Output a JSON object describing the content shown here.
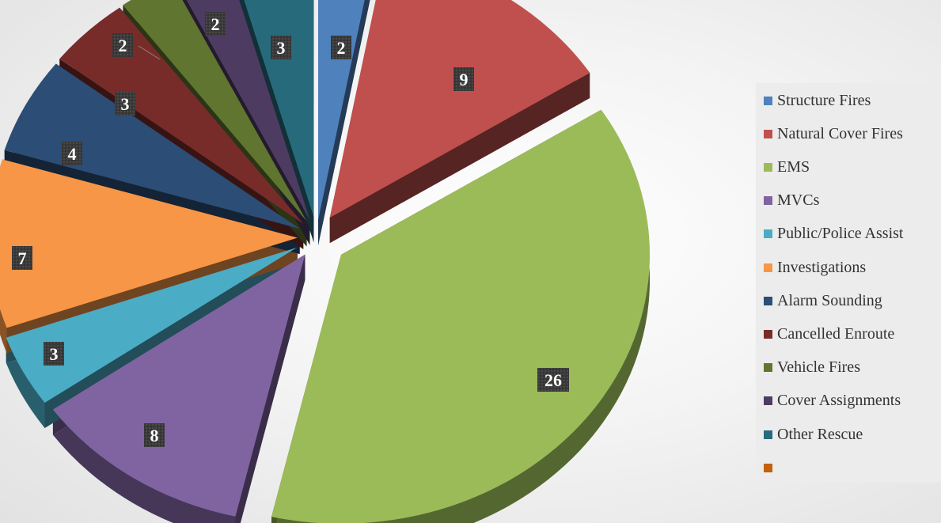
{
  "chart_data": {
    "type": "pie",
    "style": "3d-exploded",
    "legend_position": "right",
    "data_labels": true,
    "slices": [
      {
        "label": "Structure Fires",
        "value": 2,
        "color": "#4F81BD"
      },
      {
        "label": "Natural Cover Fires",
        "value": 9,
        "color": "#C0504D"
      },
      {
        "label": "EMS",
        "value": 26,
        "color": "#9BBB59"
      },
      {
        "label": "MVCs",
        "value": 8,
        "color": "#8064A2"
      },
      {
        "label": "Public/Police Assist",
        "value": 3,
        "color": "#4BACC6"
      },
      {
        "label": "Investigations",
        "value": 7,
        "color": "#F79646"
      },
      {
        "label": "Alarm Sounding",
        "value": 4,
        "color": "#2C4D75"
      },
      {
        "label": "Cancelled Enroute",
        "value": 3,
        "color": "#772C2A"
      },
      {
        "label": "Vehicle Fires",
        "value": 2,
        "color": "#5F7530"
      },
      {
        "label": "Cover Assignments",
        "value": 2,
        "color": "#4D3B62"
      },
      {
        "label": "Other Rescue",
        "value": 3,
        "color": "#276A7C"
      },
      {
        "label": "",
        "value": 0,
        "color": "#C0620E"
      }
    ]
  }
}
